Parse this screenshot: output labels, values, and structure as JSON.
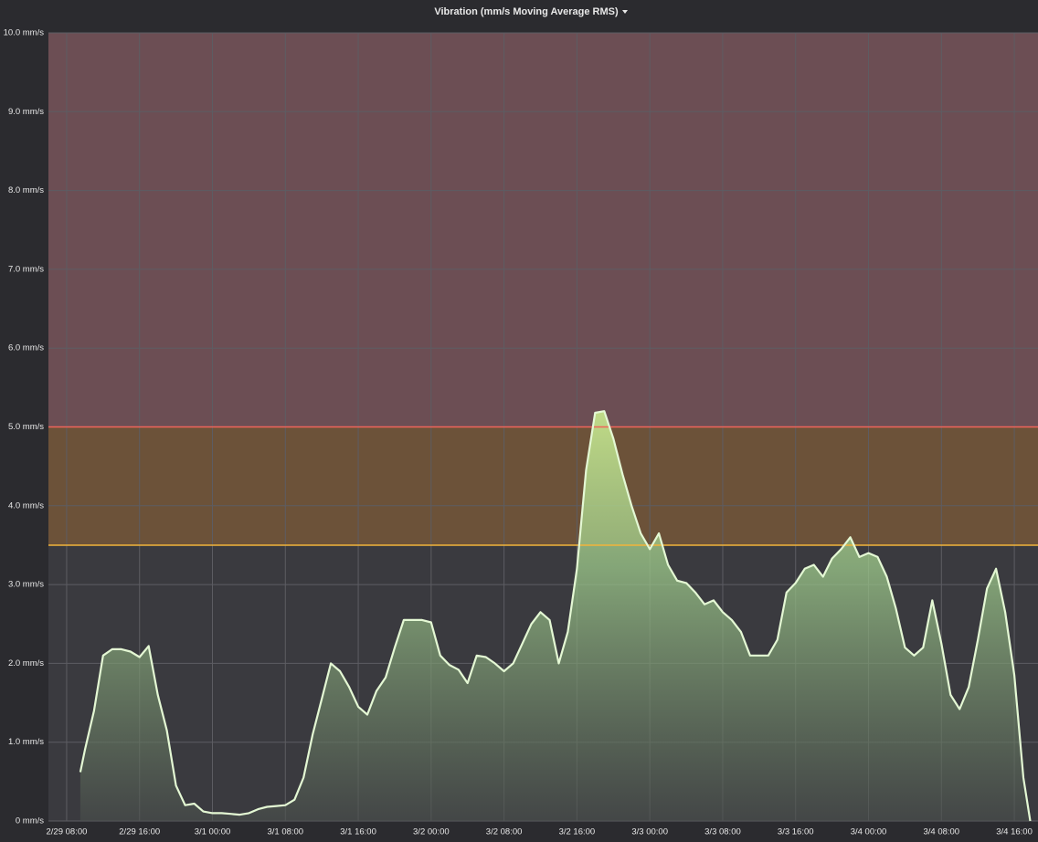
{
  "chart_data": {
    "type": "area",
    "title": "Vibration (mm/s Moving Average RMS)",
    "color": "#e4f8d4",
    "fill_color": "#b7dc8c",
    "grid": true,
    "ylim": [
      0,
      10
    ],
    "yticks": [
      {
        "value": 0,
        "label": "0 mm/s"
      },
      {
        "value": 1,
        "label": "1.0 mm/s"
      },
      {
        "value": 2,
        "label": "2.0 mm/s"
      },
      {
        "value": 3,
        "label": "3.0 mm/s"
      },
      {
        "value": 4,
        "label": "4.0 mm/s"
      },
      {
        "value": 5,
        "label": "5.0 mm/s"
      },
      {
        "value": 6,
        "label": "6.0 mm/s"
      },
      {
        "value": 7,
        "label": "7.0 mm/s"
      },
      {
        "value": 8,
        "label": "8.0 mm/s"
      },
      {
        "value": 9,
        "label": "9.0 mm/s"
      },
      {
        "value": 10,
        "label": "10.0 mm/s"
      }
    ],
    "xlim": [
      "2/29 06:00",
      "3/4 18:36"
    ],
    "xticks": [
      "2/29 08:00",
      "2/29 16:00",
      "3/1 00:00",
      "3/1 08:00",
      "3/1 16:00",
      "3/2 00:00",
      "3/2 08:00",
      "3/2 16:00",
      "3/3 00:00",
      "3/3 08:00",
      "3/3 16:00",
      "3/4 00:00",
      "3/4 08:00",
      "3/4 16:00"
    ],
    "thresholds": [
      {
        "value": 3.5,
        "color": "#f2b43a",
        "fill": "#6c5239"
      },
      {
        "value": 5,
        "color": "#f0645a",
        "fill": "#6c4e54"
      }
    ],
    "x": [
      "2/29 09:30",
      "2/29 10:00",
      "2/29 11:00",
      "2/29 12:00",
      "2/29 13:00",
      "2/29 14:00",
      "2/29 15:00",
      "2/29 16:00",
      "2/29 17:00",
      "2/29 18:00",
      "2/29 19:00",
      "2/29 20:00",
      "2/29 21:00",
      "2/29 22:00",
      "2/29 23:00",
      "3/1 00:00",
      "3/1 01:00",
      "3/1 02:00",
      "3/1 03:00",
      "3/1 04:00",
      "3/1 05:00",
      "3/1 06:00",
      "3/1 07:00",
      "3/1 08:00",
      "3/1 09:00",
      "3/1 10:00",
      "3/1 11:00",
      "3/1 12:00",
      "3/1 13:00",
      "3/1 14:00",
      "3/1 15:00",
      "3/1 16:00",
      "3/1 17:00",
      "3/1 18:00",
      "3/1 19:00",
      "3/1 20:00",
      "3/1 21:00",
      "3/1 22:00",
      "3/1 23:00",
      "3/2 00:00",
      "3/2 01:00",
      "3/2 02:00",
      "3/2 03:00",
      "3/2 04:00",
      "3/2 05:00",
      "3/2 06:00",
      "3/2 07:00",
      "3/2 08:00",
      "3/2 09:00",
      "3/2 10:00",
      "3/2 11:00",
      "3/2 12:00",
      "3/2 13:00",
      "3/2 14:00",
      "3/2 15:00",
      "3/2 16:00",
      "3/2 17:00",
      "3/2 18:00",
      "3/2 19:00",
      "3/2 20:00",
      "3/2 21:00",
      "3/2 22:00",
      "3/2 23:00",
      "3/3 00:00",
      "3/3 01:00",
      "3/3 02:00",
      "3/3 03:00",
      "3/3 04:00",
      "3/3 05:00",
      "3/3 06:00",
      "3/3 07:00",
      "3/3 08:00",
      "3/3 09:00",
      "3/3 10:00",
      "3/3 11:00",
      "3/3 12:00",
      "3/3 13:00",
      "3/3 14:00",
      "3/3 15:00",
      "3/3 16:00",
      "3/3 17:00",
      "3/3 18:00",
      "3/3 19:00",
      "3/3 20:00",
      "3/3 21:00",
      "3/3 22:00",
      "3/3 23:00",
      "3/4 00:00",
      "3/4 01:00",
      "3/4 02:00",
      "3/4 03:00",
      "3/4 04:00",
      "3/4 05:00",
      "3/4 06:00",
      "3/4 07:00",
      "3/4 08:00",
      "3/4 09:00",
      "3/4 10:00",
      "3/4 11:00",
      "3/4 12:00",
      "3/4 13:00",
      "3/4 14:00",
      "3/4 15:00",
      "3/4 16:00",
      "3/4 17:00",
      "3/4 17:45"
    ],
    "values": [
      0.62,
      0.9,
      1.4,
      2.1,
      2.18,
      2.18,
      2.15,
      2.08,
      2.22,
      1.6,
      1.15,
      0.45,
      0.2,
      0.22,
      0.12,
      0.1,
      0.1,
      0.09,
      0.08,
      0.1,
      0.15,
      0.18,
      0.19,
      0.2,
      0.27,
      0.55,
      1.1,
      1.55,
      2.0,
      1.9,
      1.7,
      1.45,
      1.35,
      1.65,
      1.82,
      2.2,
      2.55,
      2.55,
      2.55,
      2.52,
      2.1,
      1.98,
      1.92,
      1.75,
      2.1,
      2.08,
      2.0,
      1.9,
      2.0,
      2.25,
      2.5,
      2.65,
      2.55,
      2.0,
      2.4,
      3.2,
      4.45,
      5.18,
      5.2,
      4.85,
      4.4,
      4.0,
      3.65,
      3.45,
      3.65,
      3.25,
      3.05,
      3.02,
      2.9,
      2.75,
      2.8,
      2.65,
      2.55,
      2.4,
      2.1,
      2.1,
      2.1,
      2.3,
      2.9,
      3.02,
      3.2,
      3.25,
      3.1,
      3.33,
      3.45,
      3.6,
      3.35,
      3.4,
      3.35,
      3.1,
      2.7,
      2.2,
      2.1,
      2.2,
      2.8,
      2.25,
      1.6,
      1.42,
      1.7,
      2.3,
      2.95,
      3.2,
      2.65,
      1.85,
      0.55,
      0.0
    ]
  }
}
